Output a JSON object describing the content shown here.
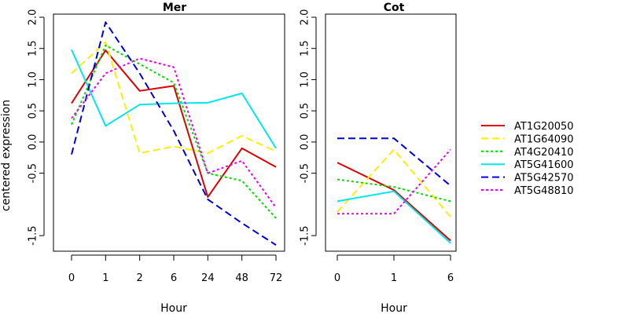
{
  "chart_data": {
    "type": "line",
    "ylabel": "centered expression",
    "xlabel": "Hour",
    "ylim": [
      -1.75,
      2.05
    ],
    "yticks": [
      -1.5,
      -0.5,
      0.0,
      0.5,
      1.0,
      1.5,
      2.0
    ],
    "ytick_labels": [
      "-1.5",
      "-0.5",
      "0.0",
      "0.5",
      "1.0",
      "1.5",
      "2.0"
    ],
    "legend_position": "right",
    "series_styles": [
      {
        "name": "AT1G20050",
        "color": "#e00000",
        "dash": "solid"
      },
      {
        "name": "AT1G64090",
        "color": "#ffee00",
        "dash": "dashed"
      },
      {
        "name": "AT4G20410",
        "color": "#00dd00",
        "dash": "dotted"
      },
      {
        "name": "AT5G41600",
        "color": "#00e8e8",
        "dash": "solid"
      },
      {
        "name": "AT5G42570",
        "color": "#0000dd",
        "dash": "dashed"
      },
      {
        "name": "AT5G48810",
        "color": "#ee00ee",
        "dash": "dotted"
      }
    ],
    "panels": [
      {
        "title": "Mer",
        "categories": [
          "0",
          "1",
          "2",
          "6",
          "24",
          "48",
          "72"
        ],
        "series": [
          {
            "name": "AT1G20050",
            "values": [
              0.62,
              1.47,
              0.82,
              0.9,
              -0.88,
              -0.1,
              -0.4
            ]
          },
          {
            "name": "AT1G64090",
            "values": [
              1.1,
              1.6,
              -0.18,
              -0.07,
              -0.18,
              0.1,
              -0.15
            ]
          },
          {
            "name": "AT4G20410",
            "values": [
              0.28,
              1.55,
              1.25,
              0.95,
              -0.5,
              -0.62,
              -1.22
            ]
          },
          {
            "name": "AT5G41600",
            "values": [
              1.48,
              0.26,
              0.6,
              0.62,
              0.63,
              0.78,
              -0.1
            ]
          },
          {
            "name": "AT5G42570",
            "values": [
              -0.2,
              1.92,
              1.1,
              0.18,
              -0.92,
              -1.3,
              -1.65
            ]
          },
          {
            "name": "AT5G48810",
            "values": [
              0.38,
              1.1,
              1.34,
              1.2,
              -0.5,
              -0.3,
              -1.05
            ]
          }
        ]
      },
      {
        "title": "Cot",
        "categories": [
          "0",
          "1",
          "6"
        ],
        "series": [
          {
            "name": "AT1G20050",
            "values": [
              -0.33,
              -0.77,
              -1.58
            ]
          },
          {
            "name": "AT1G64090",
            "values": [
              -1.12,
              -0.12,
              -1.2
            ]
          },
          {
            "name": "AT4G20410",
            "values": [
              -0.6,
              -0.72,
              -0.95
            ]
          },
          {
            "name": "AT5G41600",
            "values": [
              -0.95,
              -0.79,
              -1.62
            ]
          },
          {
            "name": "AT5G42570",
            "values": [
              0.06,
              0.06,
              -0.7
            ]
          },
          {
            "name": "AT5G48810",
            "values": [
              -1.15,
              -1.15,
              -0.12
            ]
          }
        ]
      }
    ]
  }
}
